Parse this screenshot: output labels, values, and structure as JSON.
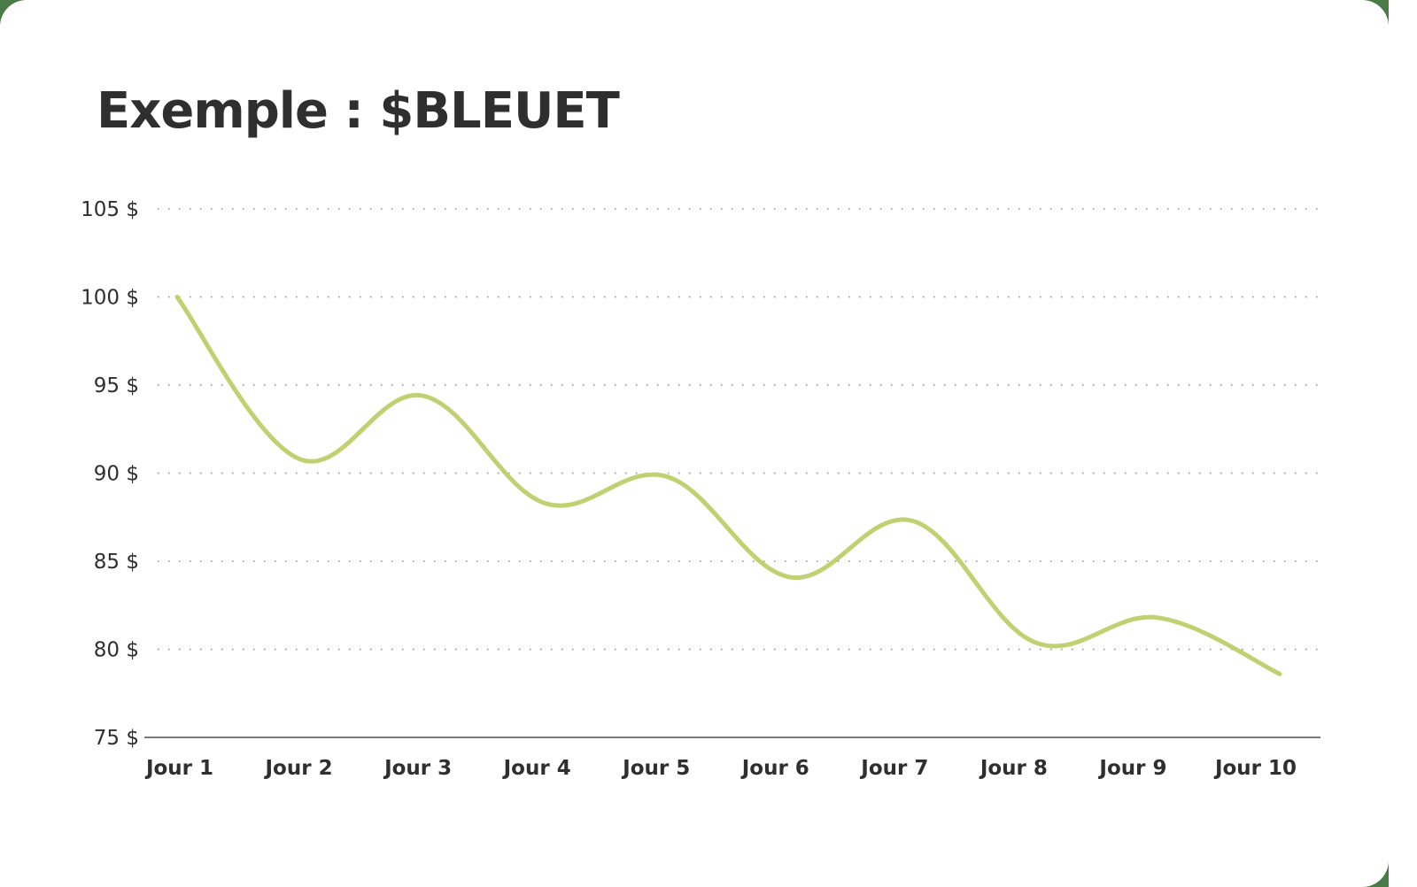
{
  "title": "Exemple : $BLEUET",
  "colors": {
    "line": "#bfd170",
    "text": "#2f2f2f",
    "grid": "#8a8a8a",
    "axis": "#7a7a7a",
    "frame": "#4a7a45",
    "background": "#ffffff"
  },
  "chart_data": {
    "type": "line",
    "title": "Exemple : $BLEUET",
    "xlabel": "",
    "ylabel": "",
    "categories": [
      "Jour 1",
      "Jour 2",
      "Jour 3",
      "Jour 4",
      "Jour 5",
      "Jour 6",
      "Jour 7",
      "Jour 8",
      "Jour 9",
      "Jour 10"
    ],
    "series": [
      {
        "name": "$BLEUET",
        "values": [
          100,
          90.8,
          94.4,
          88.3,
          89.8,
          84.1,
          87.3,
          80.4,
          81.8,
          78.6
        ]
      }
    ],
    "y_ticks": [
      "75 $",
      "80 $",
      "85 $",
      "90 $",
      "95 $",
      "100 $",
      "105 $"
    ],
    "y_tick_values": [
      75,
      80,
      85,
      90,
      95,
      100,
      105
    ],
    "ylim": [
      75,
      105
    ],
    "grid": "horizontal dotted",
    "legend": "none",
    "smooth": true
  }
}
